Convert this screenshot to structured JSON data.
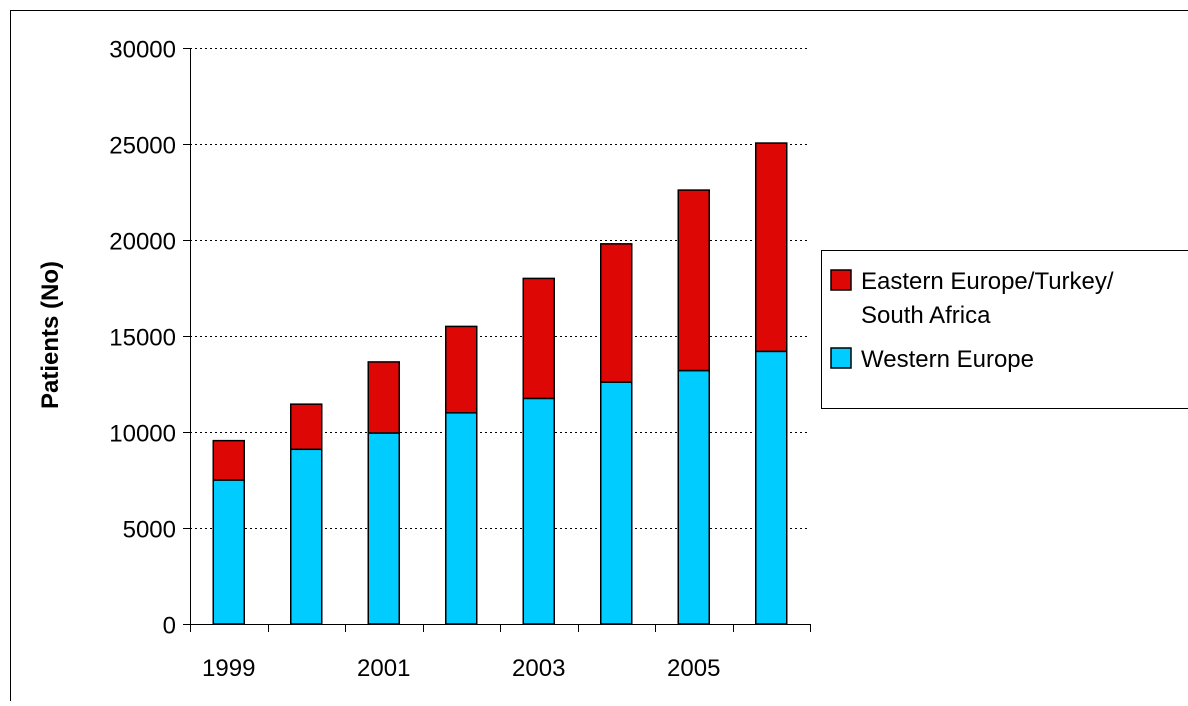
{
  "chart_data": {
    "type": "bar",
    "stacked": true,
    "categories": [
      "1999",
      "2000",
      "2001",
      "2002",
      "2003",
      "2004",
      "2005",
      "2006"
    ],
    "x_tick_labels": [
      "1999",
      "",
      "2001",
      "",
      "2003",
      "",
      "2005",
      ""
    ],
    "series": [
      {
        "name": "Western Europe",
        "color": "#00ccff",
        "values": [
          7500,
          9100,
          9950,
          11000,
          11750,
          12600,
          13200,
          14200
        ]
      },
      {
        "name": "Eastern Europe/Turkey/ South Africa",
        "color": "#dd0806",
        "values": [
          2050,
          2350,
          3700,
          4500,
          6250,
          7200,
          9400,
          10850
        ]
      }
    ],
    "legend_lines": [
      "Eastern Europe/Turkey/",
      "South Africa",
      "Western Europe"
    ],
    "ylabel": "Patients (No)",
    "xlabel": "",
    "title": "",
    "ylim": [
      0,
      30000
    ],
    "y_ticks": [
      0,
      5000,
      10000,
      15000,
      20000,
      25000,
      30000
    ],
    "y_tick_labels": [
      "0",
      "5000",
      "10000",
      "15000",
      "20000",
      "25000",
      "30000"
    ],
    "grid": "horizontal dotted",
    "legend_position": "right"
  }
}
